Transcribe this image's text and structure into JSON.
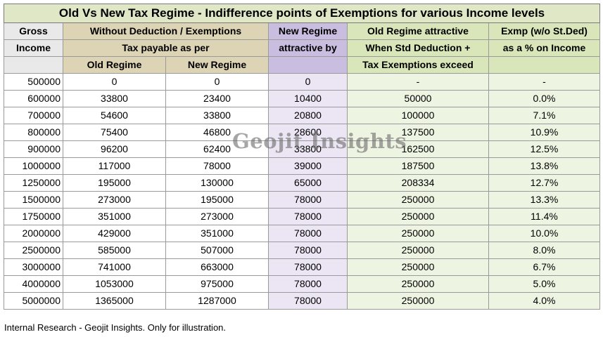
{
  "title": "Old Vs New Tax Regime - Indifference points of Exemptions for various Income levels",
  "headers": {
    "gross_1": "Gross",
    "gross_2": "Income",
    "without_1": "Without Deduction / Exemptions",
    "without_2": "Tax payable as per",
    "old_regime": "Old Regime",
    "new_regime": "New Regime",
    "newatt_1": "New Regime",
    "newatt_2": "attractive by",
    "oldatt_1": "Old Regime attractive",
    "oldatt_2": "When Std Deduction +",
    "oldatt_3": "Tax Exemptions exceed",
    "exmp_1": "Exmp (w/o St.Ded)",
    "exmp_2": "as a % on Income"
  },
  "rows": [
    {
      "income": "500000",
      "old": "0",
      "new": "0",
      "diff": "0",
      "exceed": "-",
      "pct": "-"
    },
    {
      "income": "600000",
      "old": "33800",
      "new": "23400",
      "diff": "10400",
      "exceed": "50000",
      "pct": "0.0%"
    },
    {
      "income": "700000",
      "old": "54600",
      "new": "33800",
      "diff": "20800",
      "exceed": "100000",
      "pct": "7.1%"
    },
    {
      "income": "800000",
      "old": "75400",
      "new": "46800",
      "diff": "28600",
      "exceed": "137500",
      "pct": "10.9%"
    },
    {
      "income": "900000",
      "old": "96200",
      "new": "62400",
      "diff": "33800",
      "exceed": "162500",
      "pct": "12.5%"
    },
    {
      "income": "1000000",
      "old": "117000",
      "new": "78000",
      "diff": "39000",
      "exceed": "187500",
      "pct": "13.8%"
    },
    {
      "income": "1250000",
      "old": "195000",
      "new": "130000",
      "diff": "65000",
      "exceed": "208334",
      "pct": "12.7%"
    },
    {
      "income": "1500000",
      "old": "273000",
      "new": "195000",
      "diff": "78000",
      "exceed": "250000",
      "pct": "13.3%"
    },
    {
      "income": "1750000",
      "old": "351000",
      "new": "273000",
      "diff": "78000",
      "exceed": "250000",
      "pct": "11.4%"
    },
    {
      "income": "2000000",
      "old": "429000",
      "new": "351000",
      "diff": "78000",
      "exceed": "250000",
      "pct": "10.0%"
    },
    {
      "income": "2500000",
      "old": "585000",
      "new": "507000",
      "diff": "78000",
      "exceed": "250000",
      "pct": "8.0%"
    },
    {
      "income": "3000000",
      "old": "741000",
      "new": "663000",
      "diff": "78000",
      "exceed": "250000",
      "pct": "6.7%"
    },
    {
      "income": "4000000",
      "old": "1053000",
      "new": "975000",
      "diff": "78000",
      "exceed": "250000",
      "pct": "5.0%"
    },
    {
      "income": "5000000",
      "old": "1365000",
      "new": "1287000",
      "diff": "78000",
      "exceed": "250000",
      "pct": "4.0%"
    }
  ],
  "watermark": "Geojit Insights",
  "footnote": "Internal Research - Geojit Insights. Only for illustration."
}
